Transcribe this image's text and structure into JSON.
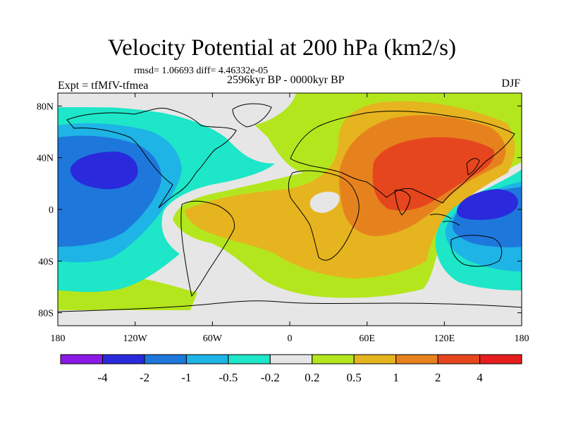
{
  "title": "Velocity Potential at 200 hPa (km2/s)",
  "stats": "rmsd= 1.06693 diff= 4.46332e-05",
  "experiment": "Expt = tfMfV-tfmea",
  "period": "2596kyr BP - 0000kyr BP",
  "season": "DJF",
  "axes": {
    "x_ticks": [
      {
        "value": -180,
        "label": "180"
      },
      {
        "value": -120,
        "label": "120W"
      },
      {
        "value": -60,
        "label": "60W"
      },
      {
        "value": 0,
        "label": "0"
      },
      {
        "value": 60,
        "label": "60E"
      },
      {
        "value": 120,
        "label": "120E"
      },
      {
        "value": 180,
        "label": "180"
      }
    ],
    "y_ticks": [
      {
        "value": 80,
        "label": "80N"
      },
      {
        "value": 40,
        "label": "40N"
      },
      {
        "value": 0,
        "label": "0"
      },
      {
        "value": -40,
        "label": "40S"
      },
      {
        "value": -80,
        "label": "80S"
      }
    ],
    "lon_range": [
      -180,
      180
    ],
    "lat_range": [
      -90,
      90
    ]
  },
  "colorbar": {
    "colors": [
      "#8c1ae6",
      "#2a2adc",
      "#1e78dc",
      "#1eb4e6",
      "#1ee6c8",
      "#e6e6e6",
      "#b4e61e",
      "#e6b41e",
      "#e6821e",
      "#e6461e",
      "#e61e1e"
    ],
    "labels": [
      {
        "after_box": 1,
        "text": "-4"
      },
      {
        "after_box": 2,
        "text": "-2"
      },
      {
        "after_box": 3,
        "text": "-1"
      },
      {
        "after_box": 4,
        "text": "-0.5"
      },
      {
        "after_box": 5,
        "text": "-0.2"
      },
      {
        "after_box": 6,
        "text": "0.2"
      },
      {
        "after_box": 7,
        "text": "0.5"
      },
      {
        "after_box": 8,
        "text": "1"
      },
      {
        "after_box": 9,
        "text": "2"
      },
      {
        "after_box": 10,
        "text": "4"
      }
    ]
  },
  "field_colors": {
    "very_neg": "#2a2adc",
    "neg": "#1e78dc",
    "mid_neg": "#1eb4e6",
    "weak_neg": "#1ee6c8",
    "neutral": "#e6e6e6",
    "weak_pos": "#b4e61e",
    "mid_pos": "#e6b41e",
    "pos": "#e6821e",
    "strong_pos": "#e6461e"
  }
}
